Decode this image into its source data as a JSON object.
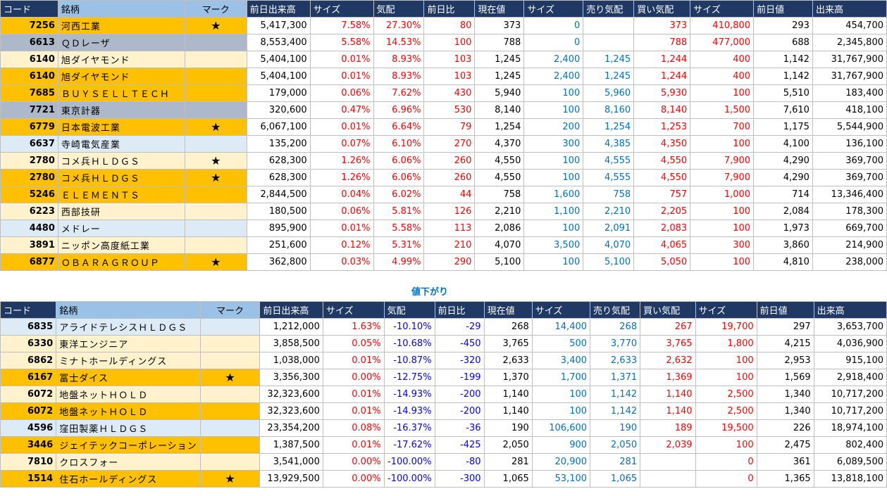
{
  "headers": [
    "コード",
    "銘柄",
    "マーク",
    "前日出来高",
    "サイズ",
    "気配",
    "前日比",
    "現在値",
    "サイズ",
    "売り気配",
    "買い気配",
    "サイズ",
    "前日値",
    "出来高"
  ],
  "section_label": "値下がり",
  "mark_symbol": "★",
  "colors": {
    "gold": "#ffc000",
    "grey": "#adb9ca",
    "cream": "#fff2cc",
    "ice": "#ddebf7",
    "header_dark": "#1f3864",
    "header_light": "#9bc2e6"
  },
  "top_rows": [
    {
      "bg": "gold",
      "code": "7256",
      "name": "河西工業",
      "mark": "★",
      "prev_vol": "5,417,300",
      "size1": "7.58%",
      "quote": "27.30%",
      "change": "80",
      "price": "373",
      "size2": "0",
      "ask": "",
      "bid": "373",
      "size3": "410,800",
      "prev_price": "293",
      "volume": "454,700"
    },
    {
      "bg": "grey",
      "code": "6613",
      "name": "ＱＤレーザ",
      "mark": "",
      "prev_vol": "8,553,400",
      "size1": "5.58%",
      "quote": "14.53%",
      "change": "100",
      "price": "788",
      "size2": "0",
      "ask": "",
      "bid": "788",
      "size3": "477,000",
      "prev_price": "688",
      "volume": "2,345,800"
    },
    {
      "bg": "cream",
      "code": "6140",
      "name": "旭ダイヤモンド",
      "mark": "",
      "prev_vol": "5,404,100",
      "size1": "0.01%",
      "quote": "8.93%",
      "change": "103",
      "price": "1,245",
      "size2": "2,400",
      "ask": "1,245",
      "bid": "1,244",
      "size3": "400",
      "prev_price": "1,142",
      "volume": "31,767,900"
    },
    {
      "bg": "gold",
      "code": "6140",
      "name": "旭ダイヤモンド",
      "mark": "",
      "prev_vol": "5,404,100",
      "size1": "0.01%",
      "quote": "8.93%",
      "change": "103",
      "price": "1,245",
      "size2": "2,400",
      "ask": "1,245",
      "bid": "1,244",
      "size3": "400",
      "prev_price": "1,142",
      "volume": "31,767,900"
    },
    {
      "bg": "gold",
      "code": "7685",
      "name": "ＢＵＹＳＥＬＬＴＥＣＨ",
      "mark": "",
      "prev_vol": "179,000",
      "size1": "0.06%",
      "quote": "7.62%",
      "change": "430",
      "price": "5,940",
      "size2": "100",
      "ask": "5,960",
      "bid": "5,930",
      "size3": "100",
      "prev_price": "5,510",
      "volume": "183,400"
    },
    {
      "bg": "grey",
      "code": "7721",
      "name": "東京計器",
      "mark": "",
      "prev_vol": "320,600",
      "size1": "0.47%",
      "quote": "6.96%",
      "change": "530",
      "price": "8,140",
      "size2": "100",
      "ask": "8,160",
      "bid": "8,140",
      "size3": "1,500",
      "prev_price": "7,610",
      "volume": "418,100"
    },
    {
      "bg": "gold",
      "code": "6779",
      "name": "日本電波工業",
      "mark": "★",
      "prev_vol": "6,067,100",
      "size1": "0.01%",
      "quote": "6.64%",
      "change": "79",
      "price": "1,254",
      "size2": "200",
      "ask": "1,254",
      "bid": "1,253",
      "size3": "700",
      "prev_price": "1,175",
      "volume": "5,544,900"
    },
    {
      "bg": "ice",
      "code": "6637",
      "name": "寺崎電気産業",
      "mark": "",
      "prev_vol": "135,200",
      "size1": "0.07%",
      "quote": "6.10%",
      "change": "270",
      "price": "4,370",
      "size2": "300",
      "ask": "4,385",
      "bid": "4,350",
      "size3": "100",
      "prev_price": "4,100",
      "volume": "136,100"
    },
    {
      "bg": "cream",
      "code": "2780",
      "name": "コメ兵ＨＬＤＧＳ",
      "mark": "★",
      "prev_vol": "628,300",
      "size1": "1.26%",
      "quote": "6.06%",
      "change": "260",
      "price": "4,550",
      "size2": "100",
      "ask": "4,555",
      "bid": "4,550",
      "size3": "7,900",
      "prev_price": "4,290",
      "volume": "369,700"
    },
    {
      "bg": "gold",
      "code": "2780",
      "name": "コメ兵ＨＬＤＧＳ",
      "mark": "★",
      "prev_vol": "628,300",
      "size1": "1.26%",
      "quote": "6.06%",
      "change": "260",
      "price": "4,550",
      "size2": "100",
      "ask": "4,555",
      "bid": "4,550",
      "size3": "7,900",
      "prev_price": "4,290",
      "volume": "369,700"
    },
    {
      "bg": "gold",
      "code": "5246",
      "name": "ＥＬＥＭＥＮＴＳ",
      "mark": "",
      "prev_vol": "2,844,500",
      "size1": "0.04%",
      "quote": "6.02%",
      "change": "44",
      "price": "758",
      "size2": "1,600",
      "ask": "758",
      "bid": "757",
      "size3": "1,000",
      "prev_price": "714",
      "volume": "13,346,400"
    },
    {
      "bg": "cream",
      "code": "6223",
      "name": "西部技研",
      "mark": "",
      "prev_vol": "180,500",
      "size1": "0.06%",
      "quote": "5.81%",
      "change": "126",
      "price": "2,210",
      "size2": "1,100",
      "ask": "2,210",
      "bid": "2,205",
      "size3": "100",
      "prev_price": "2,084",
      "volume": "178,300"
    },
    {
      "bg": "ice",
      "code": "4480",
      "name": "メドレー",
      "mark": "",
      "prev_vol": "895,900",
      "size1": "0.01%",
      "quote": "5.58%",
      "change": "113",
      "price": "2,086",
      "size2": "100",
      "ask": "2,091",
      "bid": "2,083",
      "size3": "100",
      "prev_price": "1,973",
      "volume": "669,700"
    },
    {
      "bg": "cream",
      "code": "3891",
      "name": "ニッポン高度紙工業",
      "mark": "",
      "prev_vol": "251,600",
      "size1": "0.12%",
      "quote": "5.31%",
      "change": "210",
      "price": "4,070",
      "size2": "3,500",
      "ask": "4,070",
      "bid": "4,065",
      "size3": "300",
      "prev_price": "3,860",
      "volume": "214,900"
    },
    {
      "bg": "gold",
      "code": "6877",
      "name": "ＯＢＡＲＡＧＲＯＵＰ",
      "mark": "★",
      "prev_vol": "362,800",
      "size1": "0.03%",
      "quote": "4.99%",
      "change": "290",
      "price": "5,100",
      "size2": "100",
      "ask": "5,100",
      "bid": "5,050",
      "size3": "100",
      "prev_price": "4,810",
      "volume": "238,000"
    }
  ],
  "bottom_rows": [
    {
      "bg": "ice",
      "code": "6835",
      "name": "アライドテレシスＨＬＤＧＳ",
      "mark": "",
      "prev_vol": "1,212,000",
      "size1": "1.63%",
      "quote": "-10.10%",
      "change": "-29",
      "price": "268",
      "size2": "14,400",
      "ask": "268",
      "bid": "267",
      "size3": "19,700",
      "prev_price": "297",
      "volume": "3,653,700"
    },
    {
      "bg": "cream",
      "code": "6330",
      "name": "東洋エンジニア",
      "mark": "",
      "prev_vol": "3,858,500",
      "size1": "0.05%",
      "quote": "-10.68%",
      "change": "-450",
      "price": "3,765",
      "size2": "500",
      "ask": "3,770",
      "bid": "3,765",
      "size3": "1,800",
      "prev_price": "4,215",
      "volume": "4,036,900"
    },
    {
      "bg": "cream",
      "code": "6862",
      "name": "ミナトホールディングス",
      "mark": "",
      "prev_vol": "1,038,000",
      "size1": "0.01%",
      "quote": "-10.87%",
      "change": "-320",
      "price": "2,633",
      "size2": "3,400",
      "ask": "2,633",
      "bid": "2,632",
      "size3": "100",
      "prev_price": "2,953",
      "volume": "915,100"
    },
    {
      "bg": "gold",
      "code": "6167",
      "name": "冨士ダイス",
      "mark": "★",
      "prev_vol": "3,356,300",
      "size1": "0.00%",
      "quote": "-12.75%",
      "change": "-199",
      "price": "1,370",
      "size2": "1,700",
      "ask": "1,371",
      "bid": "1,369",
      "size3": "100",
      "prev_price": "1,569",
      "volume": "2,918,400"
    },
    {
      "bg": "cream",
      "code": "6072",
      "name": "地盤ネットＨＯＬＤ",
      "mark": "",
      "prev_vol": "32,323,600",
      "size1": "0.01%",
      "quote": "-14.93%",
      "change": "-200",
      "price": "1,140",
      "size2": "100",
      "ask": "1,142",
      "bid": "1,140",
      "size3": "2,500",
      "prev_price": "1,340",
      "volume": "10,717,200"
    },
    {
      "bg": "gold",
      "code": "6072",
      "name": "地盤ネットＨＯＬＤ",
      "mark": "",
      "prev_vol": "32,323,600",
      "size1": "0.01%",
      "quote": "-14.93%",
      "change": "-200",
      "price": "1,140",
      "size2": "100",
      "ask": "1,142",
      "bid": "1,140",
      "size3": "2,500",
      "prev_price": "1,340",
      "volume": "10,717,200"
    },
    {
      "bg": "ice",
      "code": "4596",
      "name": "窪田製薬ＨＬＤＧＳ",
      "mark": "",
      "prev_vol": "23,354,200",
      "size1": "0.08%",
      "quote": "-16.37%",
      "change": "-36",
      "price": "190",
      "size2": "106,600",
      "ask": "190",
      "bid": "189",
      "size3": "19,500",
      "prev_price": "226",
      "volume": "18,974,100"
    },
    {
      "bg": "gold",
      "code": "3446",
      "name": "ジェイテックコーポレーション",
      "mark": "",
      "prev_vol": "1,387,500",
      "size1": "0.01%",
      "quote": "-17.62%",
      "change": "-425",
      "price": "2,050",
      "size2": "900",
      "ask": "2,050",
      "bid": "2,039",
      "size3": "100",
      "prev_price": "2,475",
      "volume": "802,400"
    },
    {
      "bg": "cream",
      "code": "7810",
      "name": "クロスフォー",
      "mark": "",
      "prev_vol": "3,541,000",
      "size1": "0.00%",
      "quote": "-100.00%",
      "change": "-80",
      "price": "281",
      "size2": "20,900",
      "ask": "281",
      "bid": "",
      "size3": "0",
      "prev_price": "361",
      "volume": "6,089,500"
    },
    {
      "bg": "gold",
      "code": "1514",
      "name": "住石ホールディングス",
      "mark": "★",
      "prev_vol": "13,929,500",
      "size1": "0.00%",
      "quote": "-100.00%",
      "change": "-300",
      "price": "1,065",
      "size2": "53,100",
      "ask": "1,065",
      "bid": "",
      "size3": "0",
      "prev_price": "1,365",
      "volume": "13,818,100"
    }
  ]
}
